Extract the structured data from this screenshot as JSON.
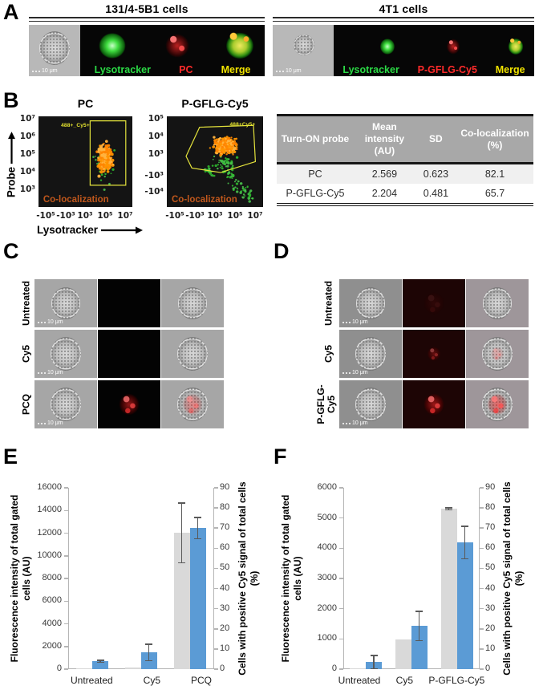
{
  "panel_labels": {
    "a": "A",
    "b": "B",
    "c": "C",
    "d": "D",
    "e": "E",
    "f": "F"
  },
  "panel_a": {
    "scale_label": "10 μm",
    "groups": [
      {
        "title": "131/4-5B1 cells",
        "channels": [
          "Lysotracker",
          "PC",
          "Merge"
        ]
      },
      {
        "title": "4T1 cells",
        "channels": [
          "Lysotracker",
          "P-GFLG-Cy5",
          "Merge"
        ]
      }
    ],
    "channel_colors": {
      "lysotracker": "#2bdc46",
      "probe": "#ff2a2a",
      "merge": "#f2e400"
    }
  },
  "panel_b": {
    "plots": [
      {
        "title": "PC",
        "gate_label": "488+_Cy5+",
        "annotation": "Co-localization",
        "y_ticks": [
          "10⁷",
          "10⁶",
          "10⁵",
          "10⁴",
          "10³"
        ],
        "x_ticks": [
          "-10⁵",
          "-10³",
          "10³",
          "10⁵",
          "10⁷"
        ]
      },
      {
        "title": "P-GFLG-Cy5",
        "gate_label": "488+Cy5+",
        "annotation": "Co-localization",
        "y_ticks": [
          "10⁵",
          "10⁴",
          "10³",
          "-10³",
          "-10⁴"
        ],
        "x_ticks": [
          "-10⁵",
          "-10³",
          "10³",
          "10⁵",
          "10⁷"
        ]
      }
    ],
    "y_axis_label": "Probe",
    "x_axis_label": "Lysotracker",
    "colors": {
      "gate": "#e3e23c",
      "annotation": "#c0571c",
      "dots_primary": "#ff9500",
      "dots_secondary": "#2eb82e"
    },
    "table": {
      "headers": [
        "Turn-ON probe",
        "Mean intensity (AU)",
        "SD",
        "Co-localization (%)"
      ],
      "rows": [
        [
          "PC",
          "2.569",
          "0.623",
          "82.1"
        ],
        [
          "P-GFLG-Cy5",
          "2.204",
          "0.481",
          "65.7"
        ]
      ]
    }
  },
  "panel_c": {
    "scale_label": "10 μm",
    "row_labels": [
      "Untreated",
      "Cy5",
      "PCQ"
    ]
  },
  "panel_d": {
    "scale_label": "10 μm",
    "row_labels": [
      "Untreated",
      "Cy5",
      "P-GFLG-Cy5"
    ]
  },
  "chart_data": [
    {
      "type": "bar",
      "panel": "E",
      "categories": [
        "Untreated",
        "Cy5",
        "PCQ"
      ],
      "series": [
        {
          "name": "Fluorescence intensity of total gated cells (AU)",
          "axis": "left",
          "color": "#d9d9d9",
          "values": [
            60,
            150,
            12000
          ],
          "errors": [
            0,
            0,
            2700
          ]
        },
        {
          "name": "Cells with positive Cy5 signal of total cells (%)",
          "axis": "right",
          "color": "#5b9bd5",
          "values": [
            3.8,
            8.5,
            70
          ],
          "errors": [
            0.6,
            4.5,
            5.5
          ]
        }
      ],
      "left_axis": {
        "label": "Fluorescence intensity of total gated cells (AU)",
        "min": 0,
        "max": 16000,
        "ticks": [
          0,
          2000,
          4000,
          6000,
          8000,
          10000,
          12000,
          14000,
          16000
        ]
      },
      "right_axis": {
        "label": "Cells with positive Cy5 signal of total cells (%)",
        "min": 0,
        "max": 90,
        "ticks": [
          0,
          10,
          20,
          30,
          40,
          50,
          60,
          70,
          80,
          90
        ]
      },
      "grid": false,
      "legend": false,
      "error_bar_color": "#595959"
    },
    {
      "type": "bar",
      "panel": "F",
      "categories": [
        "Untreated",
        "Cy5",
        "P-GFLG-Cy5"
      ],
      "series": [
        {
          "name": "Fluorescence intensity of total gated cells (AU)",
          "axis": "left",
          "color": "#d9d9d9",
          "values": [
            30,
            980,
            5300
          ],
          "errors": [
            0,
            0,
            60
          ]
        },
        {
          "name": "Cells with positive Cy5 signal of total cells (%)",
          "axis": "right",
          "color": "#5b9bd5",
          "values": [
            3.6,
            21.5,
            63
          ],
          "errors": [
            3.6,
            7.5,
            8.5
          ]
        }
      ],
      "left_axis": {
        "label": "Fluorescence intensity of total gated cells (AU)",
        "min": 0,
        "max": 6000,
        "ticks": [
          0,
          1000,
          2000,
          3000,
          4000,
          5000,
          6000
        ]
      },
      "right_axis": {
        "label": "Cells with positive Cy5 signal of total cells (%)",
        "min": 0,
        "max": 90,
        "ticks": [
          0,
          10,
          20,
          30,
          40,
          50,
          60,
          70,
          80,
          90
        ]
      },
      "grid": false,
      "legend": false,
      "error_bar_color": "#595959"
    }
  ]
}
